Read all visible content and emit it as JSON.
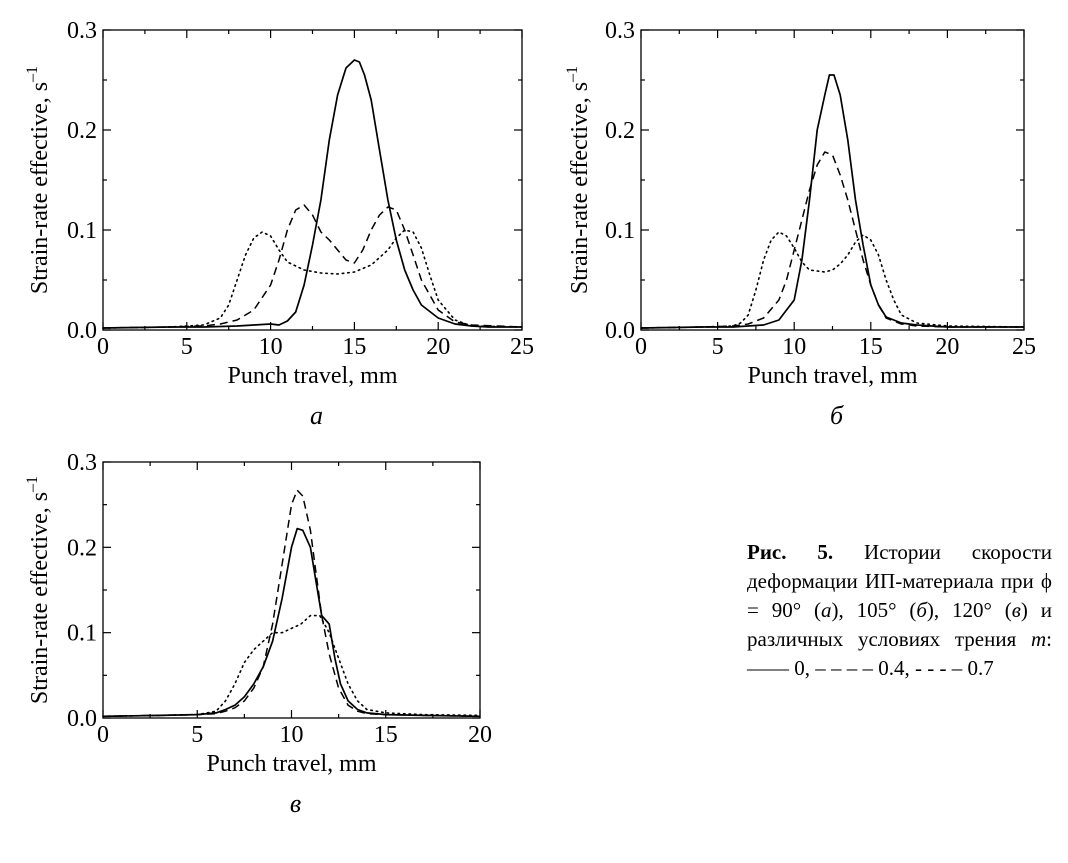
{
  "chart_data": [
    {
      "type": "line",
      "panel": "а",
      "xlabel": "Punch travel, mm",
      "ylabel": "Strain-rate effective, s",
      "ylabel_sup": "–1",
      "xlim": [
        0,
        25
      ],
      "ylim": [
        0,
        0.3
      ],
      "xticks": [
        "0",
        "5",
        "10",
        "15",
        "20",
        "25"
      ],
      "yticks": [
        "0.0",
        "0.1",
        "0.2",
        "0.3"
      ],
      "series": [
        {
          "style": "solid",
          "x": [
            0,
            4,
            6,
            8,
            9,
            10,
            10.5,
            11,
            11.5,
            12,
            12.5,
            13,
            13.5,
            14,
            14.5,
            15,
            15.3,
            15.6,
            16,
            16.5,
            17,
            17.5,
            18,
            18.5,
            19,
            20,
            21,
            22,
            23,
            25
          ],
          "y": [
            0.002,
            0.003,
            0.003,
            0.004,
            0.005,
            0.006,
            0.005,
            0.009,
            0.018,
            0.045,
            0.085,
            0.13,
            0.19,
            0.235,
            0.262,
            0.27,
            0.268,
            0.255,
            0.23,
            0.18,
            0.13,
            0.09,
            0.06,
            0.04,
            0.025,
            0.012,
            0.006,
            0.004,
            0.003,
            0.003
          ]
        },
        {
          "style": "dashed",
          "x": [
            0,
            4,
            6,
            7,
            8,
            9,
            10,
            10.5,
            11,
            11.5,
            12,
            12.5,
            13,
            13.5,
            14,
            14.5,
            15,
            15.5,
            16,
            16.5,
            17,
            17.5,
            18,
            18.5,
            19,
            20,
            21,
            22,
            25
          ],
          "y": [
            0.002,
            0.003,
            0.004,
            0.006,
            0.01,
            0.02,
            0.045,
            0.07,
            0.1,
            0.12,
            0.125,
            0.115,
            0.098,
            0.09,
            0.08,
            0.07,
            0.067,
            0.08,
            0.1,
            0.115,
            0.123,
            0.12,
            0.1,
            0.075,
            0.05,
            0.02,
            0.008,
            0.005,
            0.003
          ]
        },
        {
          "style": "dotted",
          "x": [
            0,
            4,
            6,
            7,
            7.5,
            8,
            8.5,
            9,
            9.5,
            10,
            10.5,
            11,
            12,
            13,
            14,
            15,
            16,
            17,
            17.5,
            18,
            18.5,
            19,
            19.5,
            20,
            21,
            22,
            25
          ],
          "y": [
            0.002,
            0.003,
            0.005,
            0.012,
            0.025,
            0.05,
            0.075,
            0.092,
            0.098,
            0.094,
            0.08,
            0.068,
            0.06,
            0.057,
            0.056,
            0.058,
            0.065,
            0.08,
            0.092,
            0.1,
            0.098,
            0.082,
            0.055,
            0.03,
            0.01,
            0.004,
            0.003
          ]
        }
      ]
    },
    {
      "type": "line",
      "panel": "б",
      "xlabel": "Punch travel, mm",
      "ylabel": "Strain-rate effective, s",
      "ylabel_sup": "–1",
      "xlim": [
        0,
        25
      ],
      "ylim": [
        0,
        0.3
      ],
      "xticks": [
        "0",
        "5",
        "10",
        "15",
        "20",
        "25"
      ],
      "yticks": [
        "0.0",
        "0.1",
        "0.2",
        "0.3"
      ],
      "series": [
        {
          "style": "solid",
          "x": [
            0,
            4,
            6,
            8,
            9,
            10,
            10.5,
            11,
            11.5,
            12,
            12.3,
            12.6,
            13,
            13.5,
            14,
            14.5,
            15,
            15.5,
            16,
            17,
            18,
            19,
            20,
            22,
            25
          ],
          "y": [
            0.002,
            0.003,
            0.003,
            0.005,
            0.01,
            0.03,
            0.07,
            0.13,
            0.2,
            0.235,
            0.255,
            0.255,
            0.235,
            0.19,
            0.13,
            0.085,
            0.045,
            0.025,
            0.013,
            0.007,
            0.005,
            0.004,
            0.003,
            0.003,
            0.003
          ]
        },
        {
          "style": "dashed",
          "x": [
            0,
            4,
            6,
            7,
            8,
            9,
            9.5,
            10,
            10.5,
            11,
            11.5,
            12,
            12.5,
            13,
            13.5,
            14,
            14.5,
            15,
            15.5,
            16,
            17,
            18,
            20,
            25
          ],
          "y": [
            0.002,
            0.003,
            0.004,
            0.006,
            0.012,
            0.03,
            0.05,
            0.08,
            0.11,
            0.14,
            0.165,
            0.178,
            0.175,
            0.155,
            0.13,
            0.1,
            0.07,
            0.045,
            0.025,
            0.012,
            0.006,
            0.004,
            0.003,
            0.003
          ]
        },
        {
          "style": "dotted",
          "x": [
            0,
            4,
            6,
            6.5,
            7,
            7.5,
            8,
            8.5,
            9,
            9.5,
            10,
            10.5,
            11,
            12,
            12.5,
            13,
            13.5,
            14,
            14.5,
            15,
            15.5,
            16,
            16.5,
            17,
            18,
            20,
            25
          ],
          "y": [
            0.002,
            0.003,
            0.004,
            0.007,
            0.015,
            0.04,
            0.07,
            0.09,
            0.098,
            0.094,
            0.082,
            0.068,
            0.06,
            0.058,
            0.06,
            0.066,
            0.075,
            0.088,
            0.095,
            0.09,
            0.075,
            0.05,
            0.03,
            0.015,
            0.007,
            0.004,
            0.003
          ]
        }
      ]
    },
    {
      "type": "line",
      "panel": "в",
      "xlabel": "Punch travel, mm",
      "ylabel": "Strain-rate effective, s",
      "ylabel_sup": "–1",
      "xlim": [
        0,
        20
      ],
      "ylim": [
        0,
        0.3
      ],
      "xticks": [
        "0",
        "5",
        "10",
        "15",
        "20"
      ],
      "yticks": [
        "0.0",
        "0.1",
        "0.2",
        "0.3"
      ],
      "series": [
        {
          "style": "solid",
          "x": [
            0,
            3,
            5,
            6,
            6.5,
            7,
            7.5,
            8,
            8.5,
            9,
            9.5,
            10,
            10.3,
            10.6,
            11,
            11.3,
            11.6,
            12,
            12.3,
            12.6,
            13,
            13.5,
            14,
            15,
            17,
            20
          ],
          "y": [
            0.002,
            0.003,
            0.004,
            0.006,
            0.01,
            0.015,
            0.025,
            0.04,
            0.06,
            0.09,
            0.14,
            0.2,
            0.222,
            0.22,
            0.2,
            0.16,
            0.12,
            0.11,
            0.07,
            0.04,
            0.02,
            0.01,
            0.006,
            0.004,
            0.003,
            0.002
          ]
        },
        {
          "style": "dashed",
          "x": [
            0,
            3,
            5,
            6,
            6.5,
            7,
            7.5,
            8,
            8.5,
            9,
            9.5,
            10,
            10.3,
            10.6,
            11,
            11.3,
            11.6,
            12,
            12.5,
            13,
            13.5,
            14,
            15,
            17,
            20
          ],
          "y": [
            0.002,
            0.003,
            0.004,
            0.005,
            0.008,
            0.012,
            0.02,
            0.035,
            0.06,
            0.11,
            0.18,
            0.25,
            0.267,
            0.26,
            0.22,
            0.17,
            0.12,
            0.075,
            0.035,
            0.015,
            0.008,
            0.005,
            0.004,
            0.003,
            0.002
          ]
        },
        {
          "style": "dotted",
          "x": [
            0,
            3,
            5,
            6,
            6.5,
            7,
            7.5,
            8,
            8.5,
            9,
            9.5,
            10,
            10.5,
            11,
            11.5,
            12,
            12.5,
            13,
            13.5,
            14,
            15,
            17,
            20
          ],
          "y": [
            0.002,
            0.003,
            0.004,
            0.008,
            0.02,
            0.04,
            0.065,
            0.08,
            0.09,
            0.1,
            0.1,
            0.105,
            0.11,
            0.12,
            0.12,
            0.1,
            0.07,
            0.04,
            0.02,
            0.01,
            0.006,
            0.004,
            0.003
          ]
        }
      ]
    }
  ],
  "caption": {
    "label": "Рис. 5.",
    "part1": " Истории скорости деформа­ции ИП-материала при ϕ = 90° (",
    "a": "а",
    "part2": "), 105° (",
    "b": "б",
    "part3": "), 120° (",
    "c": "в",
    "part4": ") и различных условиях трения ",
    "m": "m",
    "part5": ": —— 0, – – – – 0.4, - - - – 0.7"
  }
}
